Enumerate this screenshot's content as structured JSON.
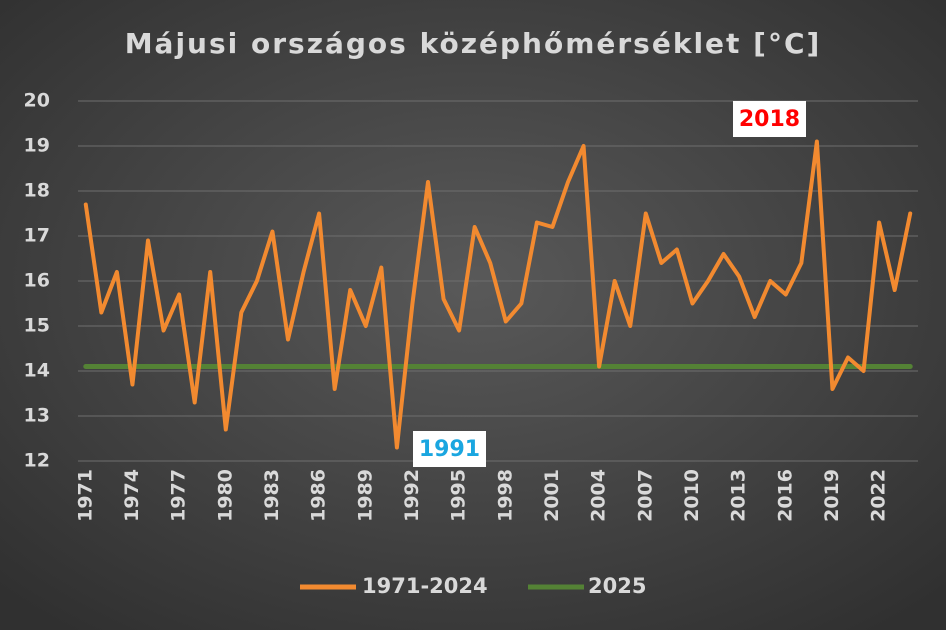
{
  "chart_data": {
    "type": "line",
    "title": "Májusi országos középhőmérséklet [°C]",
    "categories": [
      "1971",
      null,
      null,
      "1974",
      null,
      null,
      "1977",
      null,
      null,
      "1980",
      null,
      null,
      "1983",
      null,
      null,
      "1986",
      null,
      null,
      "1989",
      null,
      null,
      "1992",
      null,
      null,
      "1995",
      null,
      null,
      "1998",
      null,
      null,
      "2001",
      null,
      null,
      "2004",
      null,
      null,
      "2007",
      null,
      null,
      "2010",
      null,
      null,
      "2013",
      null,
      null,
      "2016",
      null,
      null,
      "2019",
      null,
      null,
      "2022",
      null,
      null
    ],
    "series": [
      {
        "name": "1971-2024",
        "color": "#f28a30",
        "values": [
          17.7,
          15.3,
          16.2,
          13.7,
          16.9,
          14.9,
          15.7,
          13.3,
          16.2,
          12.7,
          15.3,
          16.0,
          17.1,
          14.7,
          16.2,
          17.5,
          13.6,
          15.8,
          15.0,
          16.3,
          12.3,
          15.5,
          18.2,
          15.6,
          14.9,
          17.2,
          16.4,
          15.1,
          15.5,
          17.3,
          17.2,
          18.2,
          19.0,
          14.1,
          16.0,
          15.0,
          17.5,
          16.4,
          16.7,
          15.5,
          16.0,
          16.6,
          16.1,
          15.2,
          16.0,
          15.7,
          16.4,
          19.1,
          13.6,
          14.3,
          14.0,
          17.3,
          15.8,
          17.5
        ]
      },
      {
        "name": "2025",
        "color": "#548235",
        "values": [
          14.1,
          14.1,
          14.1,
          14.1,
          14.1,
          14.1,
          14.1,
          14.1,
          14.1,
          14.1,
          14.1,
          14.1,
          14.1,
          14.1,
          14.1,
          14.1,
          14.1,
          14.1,
          14.1,
          14.1,
          14.1,
          14.1,
          14.1,
          14.1,
          14.1,
          14.1,
          14.1,
          14.1,
          14.1,
          14.1,
          14.1,
          14.1,
          14.1,
          14.1,
          14.1,
          14.1,
          14.1,
          14.1,
          14.1,
          14.1,
          14.1,
          14.1,
          14.1,
          14.1,
          14.1,
          14.1,
          14.1,
          14.1,
          14.1,
          14.1,
          14.1,
          14.1,
          14.1,
          14.1
        ]
      }
    ],
    "ylim": [
      12,
      20
    ],
    "yticks": [
      12,
      13,
      14,
      15,
      16,
      17,
      18,
      19,
      20
    ],
    "grid": true,
    "legend": "bottom",
    "annotations": [
      {
        "text": "2018",
        "color": "#ff0000"
      },
      {
        "text": "1991",
        "color": "#1aa6e0"
      }
    ]
  }
}
